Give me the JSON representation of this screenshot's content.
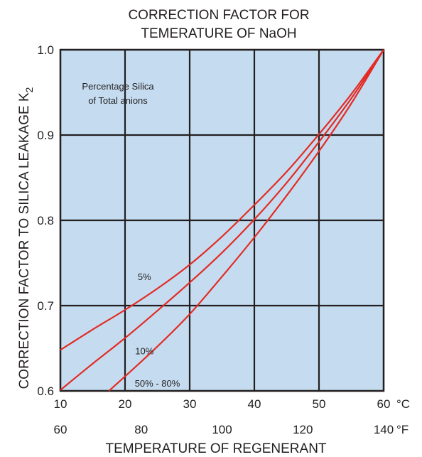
{
  "chart_data": {
    "type": "line",
    "title_lines": [
      "CORRECTION FACTOR FOR",
      "TEMERATURE OF NaOH"
    ],
    "ylabel": "CORRECTION FACTOR TO SILICA LEAKAGE K",
    "ylabel_subscript": "2",
    "xlabel": "TEMPERATURE OF REGENERANT",
    "x_unit_primary": "°C",
    "x_unit_secondary": "°F",
    "xlim": [
      10,
      60
    ],
    "ylim": [
      0.6,
      1.0
    ],
    "x_ticks": [
      "10",
      "20",
      "30",
      "40",
      "50",
      "60"
    ],
    "x_ticks_values": [
      10,
      20,
      30,
      40,
      50,
      60
    ],
    "x2_ticks": [
      "60",
      "80",
      "100",
      "120",
      "140"
    ],
    "x2_ticks_values": [
      60,
      80,
      100,
      120,
      140
    ],
    "y_ticks": [
      "0.6",
      "0.7",
      "0.8",
      "0.9",
      "1.0"
    ],
    "y_ticks_values": [
      0.6,
      0.7,
      0.8,
      0.9,
      1.0
    ],
    "grid": true,
    "legend_title_lines": [
      "Percentage Silica",
      "of Total anions"
    ],
    "series": [
      {
        "name": "5%",
        "label_at": [
          23,
          0.73
        ],
        "points": [
          [
            10,
            0.648
          ],
          [
            15,
            0.672
          ],
          [
            20,
            0.695
          ],
          [
            25,
            0.72
          ],
          [
            30,
            0.748
          ],
          [
            35,
            0.781
          ],
          [
            40,
            0.818
          ],
          [
            45,
            0.857
          ],
          [
            50,
            0.901
          ],
          [
            55,
            0.948
          ],
          [
            60,
            1.0
          ]
        ]
      },
      {
        "name": "10%",
        "label_at": [
          23,
          0.643
        ],
        "points": [
          [
            10,
            0.601
          ],
          [
            15,
            0.632
          ],
          [
            20,
            0.662
          ],
          [
            25,
            0.694
          ],
          [
            30,
            0.727
          ],
          [
            35,
            0.762
          ],
          [
            40,
            0.801
          ],
          [
            45,
            0.844
          ],
          [
            50,
            0.892
          ],
          [
            55,
            0.943
          ],
          [
            60,
            1.0
          ]
        ]
      },
      {
        "name": "50% - 80%",
        "label_at": [
          25,
          0.605
        ],
        "points": [
          [
            17.5,
            0.6
          ],
          [
            20,
            0.617
          ],
          [
            25,
            0.652
          ],
          [
            30,
            0.69
          ],
          [
            35,
            0.734
          ],
          [
            40,
            0.78
          ],
          [
            45,
            0.829
          ],
          [
            50,
            0.881
          ],
          [
            55,
            0.937
          ],
          [
            60,
            1.0
          ]
        ]
      }
    ],
    "colors": {
      "plot_background": "#c5dcf0",
      "grid": "#231f20",
      "curve": "#e32b24",
      "text": "#231f20"
    }
  }
}
